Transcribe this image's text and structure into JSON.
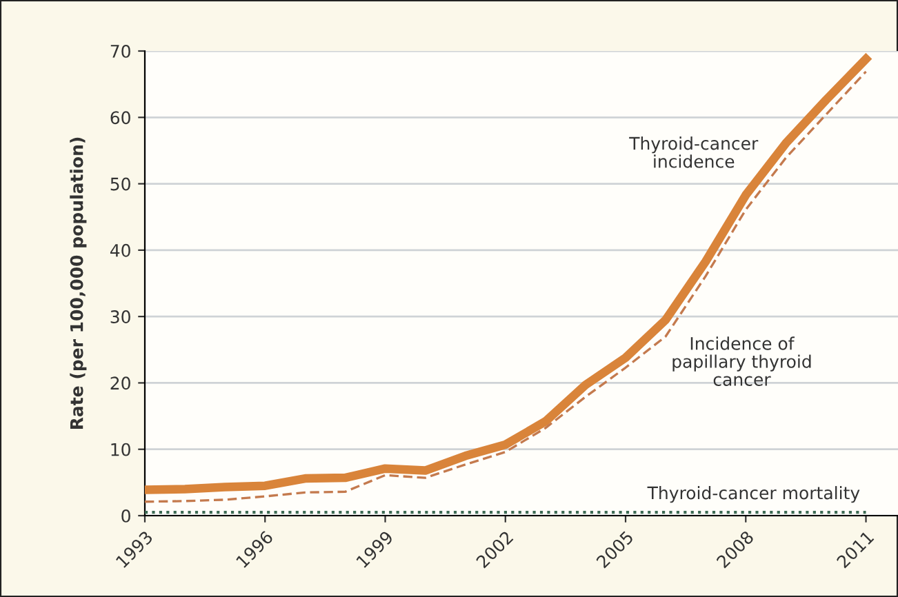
{
  "chart_data": {
    "type": "line",
    "ylabel": "Rate (per 100,000 population)",
    "x": [
      1993,
      1994,
      1995,
      1996,
      1997,
      1998,
      1999,
      2000,
      2001,
      2002,
      2003,
      2004,
      2005,
      2006,
      2007,
      2008,
      2009,
      2010,
      2011
    ],
    "series": [
      {
        "name": "Thyroid-cancer\nincidence",
        "color": "#d9843a",
        "line_style": "solid",
        "values": [
          3.9,
          4.0,
          4.3,
          4.5,
          5.6,
          5.7,
          7.1,
          6.8,
          9.0,
          10.7,
          14.2,
          19.7,
          23.8,
          29.5,
          38.3,
          48.3,
          56.1,
          62.6,
          68.8
        ]
      },
      {
        "name": "Incidence of\npapillary thyroid\ncancer",
        "color": "#c47a4e",
        "line_style": "dashed",
        "values": [
          2.1,
          2.2,
          2.4,
          2.9,
          3.5,
          3.6,
          6.1,
          5.7,
          7.7,
          9.6,
          13.2,
          17.9,
          22.3,
          27.0,
          36.1,
          46.1,
          53.9,
          60.4,
          66.9
        ]
      },
      {
        "name": "Thyroid-cancer mortality",
        "color": "#3d6b55",
        "line_style": "dotted",
        "values": [
          0.5,
          0.5,
          0.5,
          0.5,
          0.5,
          0.5,
          0.5,
          0.5,
          0.5,
          0.5,
          0.5,
          0.5,
          0.5,
          0.5,
          0.5,
          0.5,
          0.5,
          0.5,
          0.5
        ]
      }
    ],
    "xlim": [
      1993,
      2011.8
    ],
    "xticks": [
      1993,
      1996,
      1999,
      2002,
      2005,
      2008,
      2011
    ],
    "ylim": [
      0,
      70
    ],
    "yticks": [
      0,
      10,
      20,
      30,
      40,
      50,
      60,
      70
    ],
    "grid": "y",
    "marker": "none"
  }
}
